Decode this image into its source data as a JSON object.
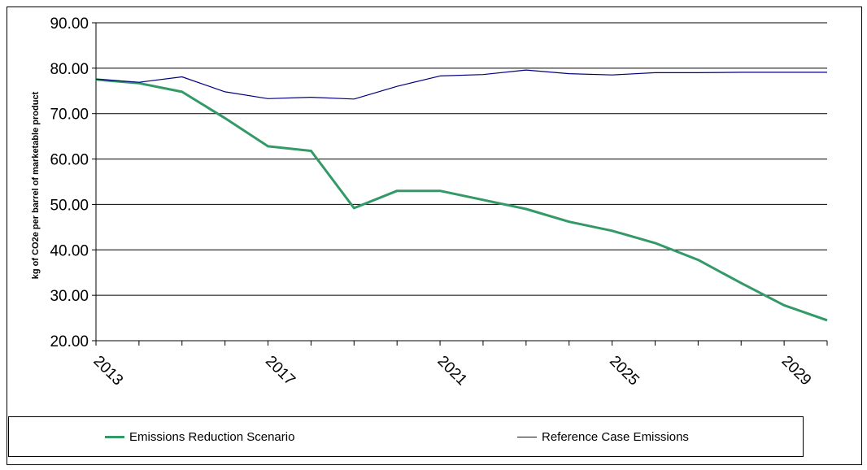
{
  "chart_data": {
    "type": "line",
    "ylabel": "kg of CO2e per barrel of marketable product",
    "ylim": [
      20,
      90
    ],
    "yticks": [
      "20.00",
      "30.00",
      "40.00",
      "50.00",
      "60.00",
      "70.00",
      "80.00",
      "90.00"
    ],
    "x": [
      2013,
      2014,
      2015,
      2016,
      2017,
      2018,
      2019,
      2020,
      2021,
      2022,
      2023,
      2024,
      2025,
      2026,
      2027,
      2028,
      2029,
      2030
    ],
    "xtick_labels": [
      "2013",
      "2017",
      "2021",
      "2025",
      "2029"
    ],
    "grid": "horizontal",
    "legend_position": "bottom",
    "series": [
      {
        "name": "Emissions Reduction Scenario",
        "color": "#339966",
        "values": [
          77.5,
          76.7,
          74.8,
          69.0,
          62.8,
          61.8,
          49.2,
          53.0,
          53.0,
          51.0,
          49.0,
          46.2,
          44.2,
          41.5,
          37.8,
          32.7,
          27.8,
          24.5
        ]
      },
      {
        "name": "Reference Case Emissions",
        "color": "#000080",
        "values": [
          77.6,
          76.9,
          78.1,
          74.8,
          73.3,
          73.6,
          73.2,
          76.0,
          78.3,
          78.6,
          79.6,
          78.8,
          78.5,
          79.0,
          79.0,
          79.1,
          79.1,
          79.1
        ]
      }
    ]
  }
}
